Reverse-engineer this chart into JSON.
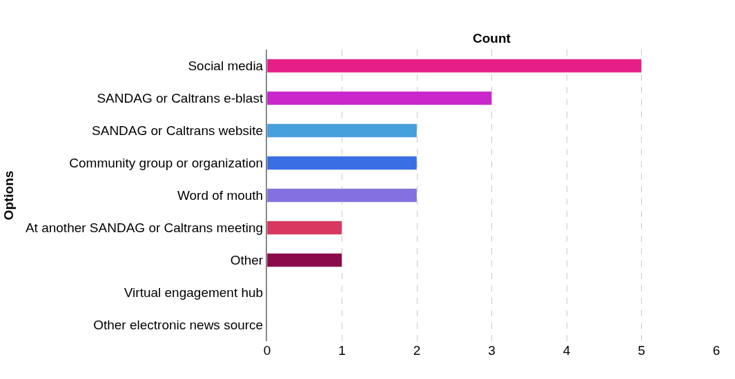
{
  "chart_data": {
    "type": "bar",
    "orientation": "horizontal",
    "xlabel": "Count",
    "ylabel": "Options",
    "categories": [
      "Social media",
      "SANDAG or Caltrans e-blast",
      "SANDAG or Caltrans website",
      "Community group or organization",
      "Word of mouth",
      "At another SANDAG or Caltrans meeting",
      "Other",
      "Virtual engagement hub",
      "Other electronic news source"
    ],
    "values": [
      5,
      3,
      2,
      2,
      2,
      1,
      1,
      0,
      0
    ],
    "colors": [
      "#e61f88",
      "#c926cc",
      "#45a0db",
      "#3a6fe3",
      "#8470df",
      "#d9375f",
      "#8a0a4c",
      null,
      null
    ],
    "xlim": [
      0,
      6
    ],
    "xticks": [
      0,
      1,
      2,
      3,
      4,
      5,
      6
    ],
    "grid": "x"
  }
}
